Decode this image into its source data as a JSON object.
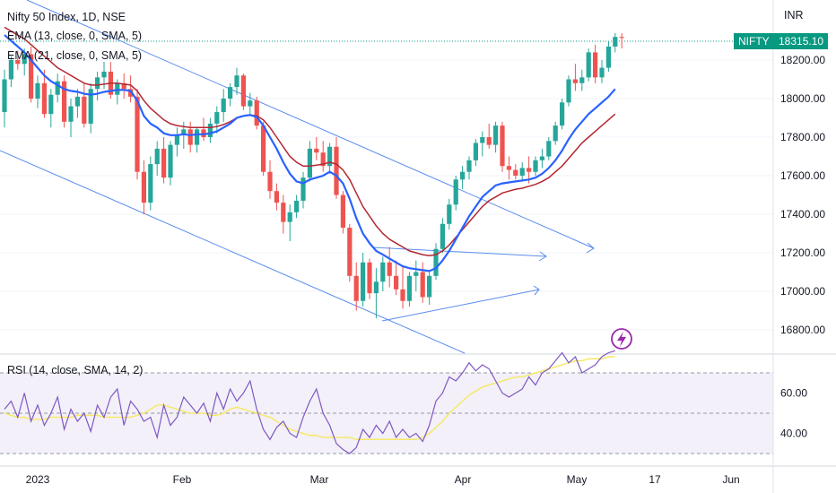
{
  "header": {
    "title": "Nifty 50 Index, 1D, NSE",
    "indicator_1": "EMA (13, close, 0, SMA, 5)",
    "indicator_2": "EMA (21, close, 0, SMA, 5)",
    "currency": "INR",
    "symbol_badge": "NIFTY",
    "price_badge": "18315.10"
  },
  "rsi_panel": {
    "label": "RSI (14, close, SMA, 14, 2)"
  },
  "colors": {
    "up": "#26a69a",
    "down": "#ef5350",
    "ema13": "#2962ff",
    "ema21": "#b22833",
    "trend": "#5b8def",
    "rsi": "#7e57c2",
    "rsi_ma": "#f5e96a",
    "badge": "#089981"
  },
  "icons": {
    "logo": "lightning-bolt-icon"
  },
  "chart_data": [
    {
      "type": "candlestick",
      "title": "Nifty 50 Index, 1D, NSE",
      "y_ticks": [
        16800,
        17000,
        17200,
        17400,
        17600,
        17800,
        18000,
        18200
      ],
      "y_tick_labels": [
        "16800.00",
        "17000.00",
        "17200.00",
        "17400.00",
        "17600.00",
        "17800.00",
        "18000.00",
        "18200.00"
      ],
      "ylim": [
        16720,
        18420
      ],
      "x_tick_labels": [
        "2023",
        "Feb",
        "Mar",
        "Apr",
        "May",
        "17",
        "Jun"
      ],
      "last_price": 18315.1,
      "candles_ohlc": [
        [
          17930,
          18150,
          17850,
          18100
        ],
        [
          18100,
          18220,
          18060,
          18200
        ],
        [
          18200,
          18250,
          18150,
          18180
        ],
        [
          18180,
          18260,
          18120,
          18230
        ],
        [
          18230,
          18270,
          17980,
          18000
        ],
        [
          18000,
          18120,
          17950,
          18080
        ],
        [
          18080,
          18150,
          17900,
          17920
        ],
        [
          17920,
          18050,
          17850,
          18020
        ],
        [
          18020,
          18130,
          17980,
          18090
        ],
        [
          18090,
          18120,
          17850,
          17880
        ],
        [
          17880,
          18000,
          17800,
          17960
        ],
        [
          17960,
          18050,
          17900,
          18010
        ],
        [
          18010,
          18080,
          17850,
          17870
        ],
        [
          17870,
          18080,
          17820,
          18050
        ],
        [
          18050,
          18140,
          17990,
          18110
        ],
        [
          18110,
          18190,
          18050,
          18140
        ],
        [
          18140,
          18190,
          18000,
          18020
        ],
        [
          18020,
          18100,
          17970,
          18080
        ],
        [
          18080,
          18130,
          18000,
          18050
        ],
        [
          18050,
          18120,
          17980,
          18010
        ],
        [
          18010,
          18050,
          17580,
          17620
        ],
        [
          17620,
          17680,
          17400,
          17460
        ],
        [
          17460,
          17700,
          17420,
          17660
        ],
        [
          17660,
          17780,
          17600,
          17740
        ],
        [
          17740,
          17800,
          17560,
          17590
        ],
        [
          17590,
          17780,
          17550,
          17760
        ],
        [
          17760,
          17850,
          17700,
          17810
        ],
        [
          17810,
          17880,
          17740,
          17840
        ],
        [
          17840,
          17880,
          17720,
          17760
        ],
        [
          17760,
          17850,
          17720,
          17840
        ],
        [
          17840,
          17900,
          17780,
          17800
        ],
        [
          17800,
          17900,
          17770,
          17870
        ],
        [
          17870,
          17960,
          17820,
          17930
        ],
        [
          17930,
          18050,
          17880,
          18000
        ],
        [
          18000,
          18080,
          17960,
          18060
        ],
        [
          18060,
          18160,
          18020,
          18120
        ],
        [
          18120,
          18130,
          17940,
          17960
        ],
        [
          17960,
          18030,
          17910,
          17990
        ],
        [
          17990,
          18010,
          17840,
          17860
        ],
        [
          17860,
          17880,
          17600,
          17620
        ],
        [
          17620,
          17680,
          17480,
          17520
        ],
        [
          17520,
          17560,
          17420,
          17460
        ],
        [
          17460,
          17500,
          17300,
          17360
        ],
        [
          17360,
          17450,
          17260,
          17410
        ],
        [
          17410,
          17500,
          17380,
          17470
        ],
        [
          17470,
          17620,
          17430,
          17590
        ],
        [
          17590,
          17780,
          17570,
          17740
        ],
        [
          17740,
          17800,
          17680,
          17720
        ],
        [
          17720,
          17780,
          17620,
          17650
        ],
        [
          17650,
          17770,
          17610,
          17750
        ],
        [
          17750,
          17800,
          17480,
          17500
        ],
        [
          17500,
          17520,
          17300,
          17330
        ],
        [
          17330,
          17350,
          17050,
          17080
        ],
        [
          17080,
          17150,
          16900,
          16950
        ],
        [
          16950,
          17200,
          16920,
          17150
        ],
        [
          17150,
          17170,
          16960,
          16990
        ],
        [
          16990,
          17120,
          16860,
          17050
        ],
        [
          17050,
          17180,
          17000,
          17150
        ],
        [
          17150,
          17230,
          17020,
          17080
        ],
        [
          17080,
          17160,
          16980,
          17010
        ],
        [
          17010,
          17130,
          16910,
          16950
        ],
        [
          16950,
          17100,
          16920,
          17080
        ],
        [
          17080,
          17160,
          17000,
          17100
        ],
        [
          17100,
          17150,
          16940,
          16970
        ],
        [
          16970,
          17100,
          16930,
          17080
        ],
        [
          17080,
          17250,
          17060,
          17220
        ],
        [
          17220,
          17380,
          17200,
          17350
        ],
        [
          17350,
          17480,
          17320,
          17450
        ],
        [
          17450,
          17600,
          17420,
          17580
        ],
        [
          17580,
          17650,
          17530,
          17620
        ],
        [
          17620,
          17700,
          17580,
          17680
        ],
        [
          17680,
          17790,
          17650,
          17770
        ],
        [
          17770,
          17830,
          17700,
          17800
        ],
        [
          17800,
          17870,
          17740,
          17760
        ],
        [
          17760,
          17880,
          17720,
          17860
        ],
        [
          17860,
          17880,
          17620,
          17650
        ],
        [
          17650,
          17700,
          17580,
          17630
        ],
        [
          17630,
          17660,
          17580,
          17600
        ],
        [
          17600,
          17670,
          17570,
          17640
        ],
        [
          17640,
          17700,
          17560,
          17620
        ],
        [
          17620,
          17700,
          17600,
          17680
        ],
        [
          17680,
          17740,
          17640,
          17700
        ],
        [
          17700,
          17800,
          17680,
          17780
        ],
        [
          17780,
          17880,
          17760,
          17860
        ],
        [
          17860,
          18000,
          17840,
          17980
        ],
        [
          17980,
          18120,
          17960,
          18100
        ],
        [
          18100,
          18180,
          18040,
          18080
        ],
        [
          18080,
          18150,
          18040,
          18110
        ],
        [
          18110,
          18260,
          18090,
          18240
        ],
        [
          18240,
          18280,
          18080,
          18110
        ],
        [
          18110,
          18200,
          18080,
          18160
        ],
        [
          18160,
          18300,
          18140,
          18270
        ],
        [
          18270,
          18340,
          18240,
          18320
        ],
        [
          18320,
          18340,
          18260,
          18315
        ]
      ],
      "ema13": [
        18330,
        18300,
        18270,
        18240,
        18200,
        18160,
        18120,
        18090,
        18070,
        18050,
        18040,
        18035,
        18025,
        18020,
        18025,
        18035,
        18040,
        18045,
        18045,
        18040,
        17990,
        17910,
        17870,
        17850,
        17820,
        17810,
        17810,
        17815,
        17810,
        17815,
        17815,
        17820,
        17830,
        17850,
        17870,
        17900,
        17910,
        17915,
        17905,
        17860,
        17800,
        17740,
        17670,
        17610,
        17570,
        17560,
        17580,
        17590,
        17600,
        17620,
        17600,
        17560,
        17480,
        17380,
        17300,
        17250,
        17210,
        17190,
        17170,
        17150,
        17130,
        17120,
        17115,
        17110,
        17105,
        17120,
        17160,
        17210,
        17270,
        17330,
        17390,
        17440,
        17490,
        17520,
        17550,
        17560,
        17565,
        17570,
        17575,
        17580,
        17590,
        17610,
        17640,
        17680,
        17730,
        17790,
        17840,
        17880,
        17920,
        17950,
        17980,
        18010,
        18050
      ],
      "ema21": [
        18370,
        18350,
        18330,
        18310,
        18280,
        18250,
        18220,
        18190,
        18160,
        18140,
        18120,
        18100,
        18080,
        18070,
        18070,
        18075,
        18080,
        18080,
        18075,
        18070,
        18040,
        17990,
        17950,
        17920,
        17890,
        17870,
        17860,
        17855,
        17850,
        17850,
        17850,
        17850,
        17855,
        17865,
        17880,
        17900,
        17910,
        17915,
        17910,
        17890,
        17850,
        17800,
        17750,
        17700,
        17670,
        17650,
        17650,
        17655,
        17660,
        17670,
        17660,
        17630,
        17580,
        17510,
        17440,
        17390,
        17340,
        17300,
        17270,
        17250,
        17230,
        17210,
        17200,
        17190,
        17185,
        17190,
        17210,
        17240,
        17280,
        17320,
        17360,
        17400,
        17440,
        17470,
        17490,
        17510,
        17520,
        17530,
        17535,
        17545,
        17555,
        17570,
        17590,
        17620,
        17650,
        17690,
        17730,
        17770,
        17800,
        17830,
        17860,
        17890,
        17920
      ]
    },
    {
      "type": "line",
      "title": "RSI (14, close, SMA, 14, 2)",
      "y_tick_labels": [
        "40.00",
        "60.00"
      ],
      "ylim": [
        25,
        82
      ],
      "series": [
        {
          "values": [
            52,
            56,
            48,
            60,
            46,
            54,
            44,
            50,
            58,
            42,
            52,
            46,
            50,
            41,
            54,
            48,
            58,
            62,
            44,
            56,
            52,
            46,
            48,
            38,
            54,
            44,
            48,
            58,
            54,
            50,
            55,
            46,
            60,
            52,
            62,
            56,
            60,
            66,
            52,
            42,
            37,
            43,
            46,
            40,
            38,
            48,
            56,
            62,
            50,
            44,
            35,
            32,
            30,
            33,
            42,
            38,
            44,
            40,
            46,
            38,
            42,
            38,
            40,
            36,
            44,
            56,
            60,
            68,
            66,
            70,
            75,
            71,
            74,
            72,
            66,
            60,
            58,
            60,
            62,
            68,
            64,
            70,
            72,
            76,
            80,
            75,
            78,
            70,
            72,
            74,
            78,
            80,
            81
          ]
        },
        {
          "values": [
            50,
            49,
            48,
            48,
            47,
            47,
            47,
            48,
            48,
            48,
            48,
            49,
            49,
            49,
            49,
            48,
            48,
            48,
            48,
            48,
            49,
            50,
            52,
            54,
            54,
            53,
            52,
            51,
            50,
            50,
            50,
            49,
            49,
            50,
            52,
            53,
            52,
            51,
            50,
            49,
            48,
            46,
            44,
            42,
            41,
            40,
            39,
            39,
            38,
            38,
            38,
            38,
            38,
            37,
            37,
            37,
            37,
            37,
            37,
            37,
            37,
            37,
            37,
            38,
            40,
            43,
            46,
            50,
            53,
            56,
            59,
            61,
            63,
            64,
            65,
            66,
            67,
            68,
            68,
            69,
            70,
            71,
            72,
            73,
            74,
            75,
            76,
            76,
            77,
            77,
            77,
            78,
            78
          ]
        }
      ]
    }
  ]
}
